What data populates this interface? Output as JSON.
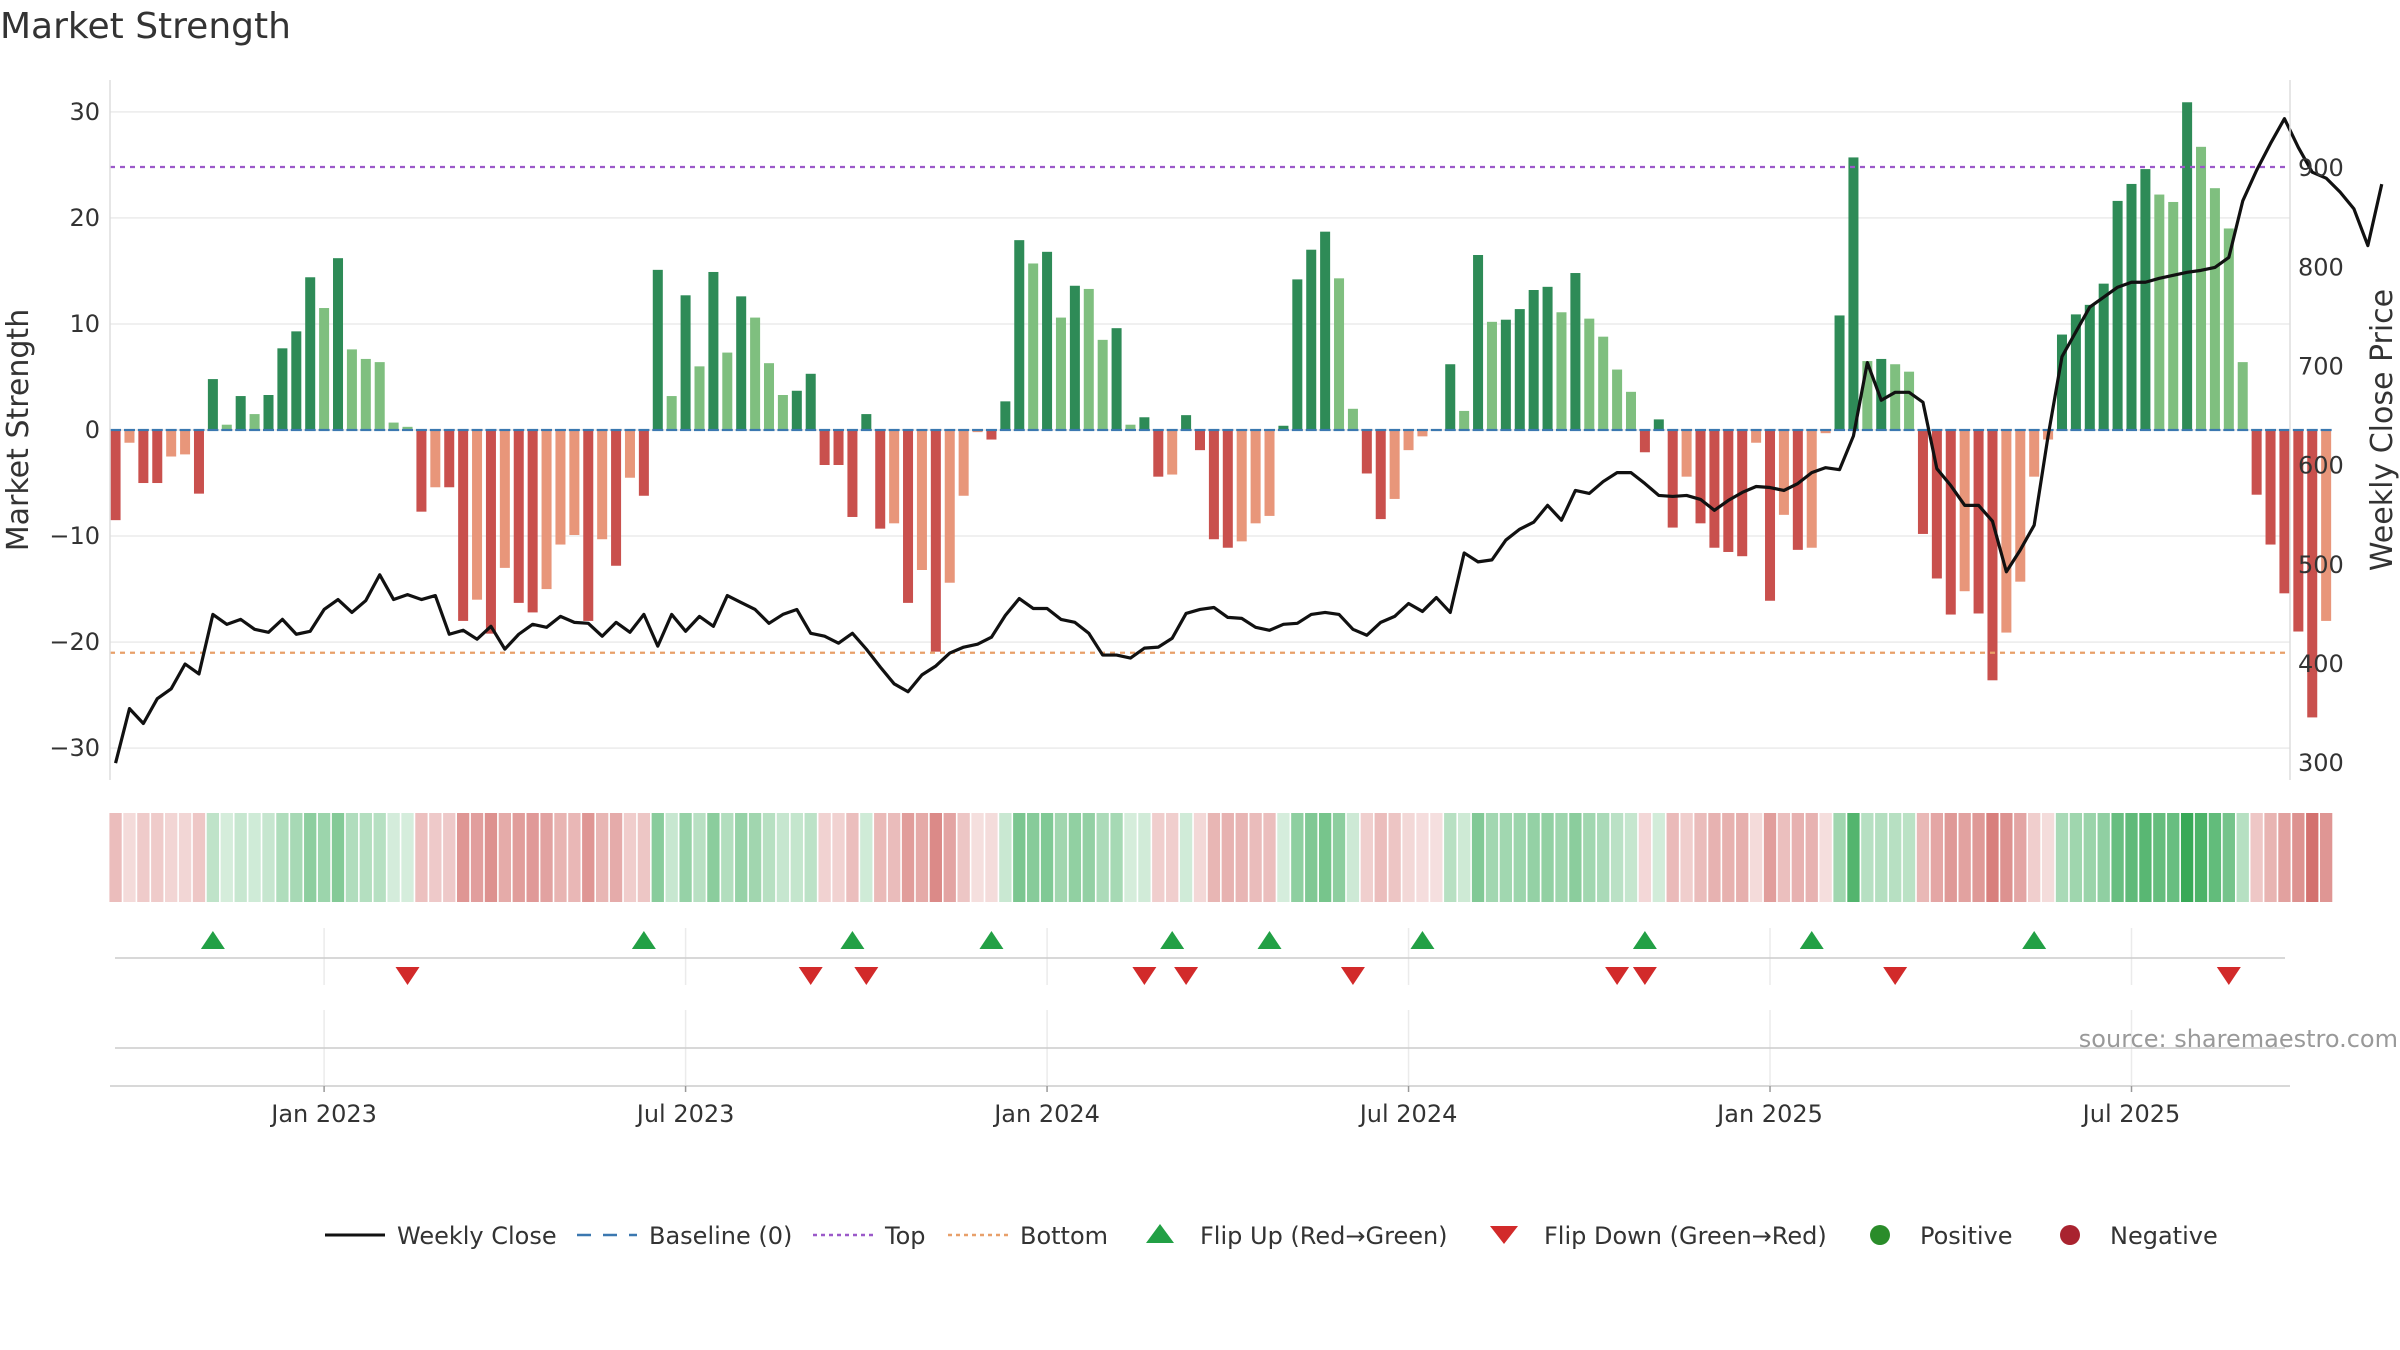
{
  "chart_data": {
    "type": "bar",
    "title": "Market Strength",
    "ylabel_left": "Market Strength",
    "ylabel_right": "Weekly Close Price",
    "ylim_left": [
      -33,
      33
    ],
    "ylim_right": [
      283,
      989
    ],
    "yticks_left": [
      -30,
      -20,
      -10,
      0,
      10,
      20,
      30
    ],
    "ytick_labels_left": [
      "−30",
      "−20",
      "−10",
      "0",
      "10",
      "20",
      "30"
    ],
    "yticks_right": [
      300,
      400,
      500,
      600,
      700,
      800,
      900
    ],
    "ytick_labels_right": [
      "300",
      "400",
      "500",
      "600",
      "700",
      "800",
      "900"
    ],
    "x_start": "2022-10-21",
    "x_range_weeks": [
      -0.4,
      156.4
    ],
    "xtick_weeks": [
      15,
      41,
      67,
      93,
      119,
      145
    ],
    "xtick_labels": [
      "Jan 2023",
      "Jul 2023",
      "Jan 2024",
      "Jul 2024",
      "Jan 2025",
      "Jul 2025"
    ],
    "top_level": 24.8,
    "bottom_level": -21,
    "baseline": 0,
    "strength_values": [
      -8.5,
      -1.2,
      -5,
      -5,
      -2.5,
      -2.3,
      -6,
      4.8,
      0.5,
      3.2,
      1.5,
      3.3,
      7.7,
      9.3,
      14.4,
      11.5,
      16.2,
      7.6,
      6.7,
      6.4,
      0.7,
      0.3,
      -7.7,
      -5.4,
      -5.4,
      -18,
      -16,
      -19.2,
      -13,
      -16.3,
      -17.2,
      -15,
      -10.8,
      -9.9,
      -18,
      -10.3,
      -12.8,
      -4.5,
      -6.2,
      15.1,
      3.2,
      12.7,
      6,
      14.9,
      7.3,
      12.6,
      10.6,
      6.3,
      3.3,
      3.7,
      5.3,
      -3.3,
      -3.3,
      -8.2,
      1.5,
      -9.3,
      -8.8,
      -16.3,
      -13.2,
      -20.9,
      -14.4,
      -6.2,
      -0.2,
      -0.9,
      2.7,
      17.9,
      15.7,
      16.8,
      10.6,
      13.6,
      13.3,
      8.5,
      9.6,
      0.5,
      1.2,
      -4.4,
      -4.2,
      1.4,
      -1.9,
      -10.3,
      -11.1,
      -10.5,
      -8.8,
      -8.1,
      0.4,
      14.2,
      17,
      18.7,
      14.3,
      2,
      -4.1,
      -8.4,
      -6.5,
      -1.9,
      -0.6,
      -0.1,
      6.2,
      1.8,
      16.5,
      10.2,
      10.4,
      11.4,
      13.2,
      13.5,
      11.1,
      14.8,
      10.5,
      8.8,
      5.7,
      3.6,
      -2.1,
      1,
      -9.2,
      -4.4,
      -8.8,
      -11.1,
      -11.5,
      -11.9,
      -1.2,
      -16.1,
      -8,
      -11.3,
      -11.1,
      -0.3,
      10.8,
      25.7,
      6.5,
      6.7,
      6.2,
      5.5,
      -9.8,
      -14,
      -17.4,
      -15.2,
      -17.3,
      -23.6,
      -19.1,
      -14.3,
      -4.4,
      -0.9,
      9,
      10.9,
      11.8,
      13.8,
      21.6,
      23.2,
      24.6,
      22.2,
      21.5,
      30.9,
      26.7,
      22.8,
      19,
      6.4,
      -6.1,
      -10.8,
      -15.4,
      -19,
      -27.1,
      -18
    ],
    "price_values": [
      300,
      355,
      340,
      365,
      375,
      400,
      390,
      450,
      440,
      445,
      435,
      432,
      445,
      430,
      433,
      455,
      465,
      452,
      464,
      490,
      465,
      470,
      465,
      469,
      430,
      434,
      425,
      438,
      415,
      430,
      440,
      437,
      448,
      442,
      441,
      428,
      442,
      432,
      450,
      418,
      450,
      433,
      448,
      438,
      469,
      462,
      455,
      441,
      450,
      455,
      431,
      428,
      421,
      431,
      415,
      397,
      380,
      372,
      389,
      398,
      411,
      417,
      420,
      427,
      449,
      466,
      456,
      456,
      445,
      442,
      431,
      409,
      409,
      406,
      416,
      417,
      426,
      451,
      455,
      457,
      447,
      446,
      437,
      434,
      440,
      441,
      450,
      452,
      450,
      435,
      429,
      442,
      448,
      461,
      453,
      467,
      452,
      512,
      503,
      505,
      525,
      536,
      543,
      560,
      545,
      575,
      572,
      584,
      593,
      593,
      582,
      570,
      569,
      570,
      566,
      555,
      565,
      573,
      579,
      578,
      575,
      582,
      593,
      598,
      596,
      630,
      704,
      666,
      674,
      674,
      664,
      597,
      580,
      560,
      560,
      544,
      493,
      515,
      540,
      630,
      710,
      735,
      760,
      770,
      780,
      785,
      785,
      789,
      792,
      795,
      797,
      800,
      810,
      867,
      898,
      925,
      950,
      921,
      896,
      890,
      876,
      859,
      822,
      884
    ],
    "flip_up_weeks": [
      7,
      38,
      53,
      63,
      76,
      83,
      94,
      110,
      122,
      138
    ],
    "flip_down_weeks": [
      21,
      50,
      54,
      74,
      77,
      89,
      108,
      110,
      128,
      152
    ],
    "series": [
      {
        "name": "Weekly Close",
        "role": "line-right-axis",
        "color": "#111111"
      },
      {
        "name": "Baseline (0)",
        "role": "dashed",
        "color": "#3b78b0"
      },
      {
        "name": "Top",
        "role": "dotted",
        "color": "#9b59c9"
      },
      {
        "name": "Bottom",
        "role": "dotted",
        "color": "#e8a06a"
      }
    ],
    "legend": [
      "Weekly Close",
      "Baseline (0)",
      "Top",
      "Bottom",
      "Flip Up (Red→Green)",
      "Flip Down (Green→Red)",
      "Positive",
      "Negative"
    ],
    "legend_position": "bottom-center"
  },
  "colors": {
    "strong_positive": "#2e8b57",
    "weak_positive": "#7fbf7f",
    "strong_negative": "#c9504d",
    "weak_negative": "#e8967a",
    "price_line": "#111111",
    "baseline": "#3b78b0",
    "top": "#9b59c9",
    "bottom": "#e8a06a",
    "flip_up": "#22a045",
    "flip_down": "#d22a2a",
    "positive_dot": "#2a8c2a",
    "negative_dot": "#a9232f",
    "grid": "#ebebeb"
  },
  "source_text": "source: sharemaestro.com"
}
